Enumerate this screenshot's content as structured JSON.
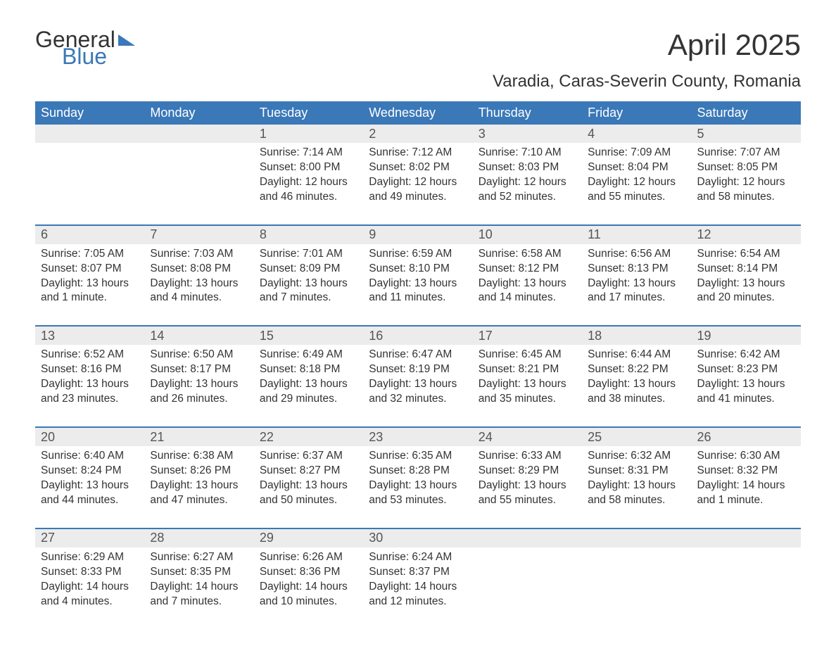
{
  "logo": {
    "text1": "General",
    "text2": "Blue"
  },
  "title": "April 2025",
  "subtitle": "Varadia, Caras-Severin County, Romania",
  "style": {
    "header_bg": "#3a78b8",
    "header_fg": "#ffffff",
    "daynum_bg": "#ececec",
    "daynum_fg": "#555555",
    "body_fg": "#333333",
    "week_border": "#3a78b8",
    "page_bg": "#ffffff",
    "title_fontsize": 42,
    "subtitle_fontsize": 24,
    "header_fontsize": 18,
    "cell_fontsize": 15.5
  },
  "columns": [
    "Sunday",
    "Monday",
    "Tuesday",
    "Wednesday",
    "Thursday",
    "Friday",
    "Saturday"
  ],
  "weeks": [
    {
      "nums": [
        "",
        "",
        "1",
        "2",
        "3",
        "4",
        "5"
      ],
      "cells": [
        "",
        "",
        "Sunrise: 7:14 AM\nSunset: 8:00 PM\nDaylight: 12 hours and 46 minutes.",
        "Sunrise: 7:12 AM\nSunset: 8:02 PM\nDaylight: 12 hours and 49 minutes.",
        "Sunrise: 7:10 AM\nSunset: 8:03 PM\nDaylight: 12 hours and 52 minutes.",
        "Sunrise: 7:09 AM\nSunset: 8:04 PM\nDaylight: 12 hours and 55 minutes.",
        "Sunrise: 7:07 AM\nSunset: 8:05 PM\nDaylight: 12 hours and 58 minutes."
      ]
    },
    {
      "nums": [
        "6",
        "7",
        "8",
        "9",
        "10",
        "11",
        "12"
      ],
      "cells": [
        "Sunrise: 7:05 AM\nSunset: 8:07 PM\nDaylight: 13 hours and 1 minute.",
        "Sunrise: 7:03 AM\nSunset: 8:08 PM\nDaylight: 13 hours and 4 minutes.",
        "Sunrise: 7:01 AM\nSunset: 8:09 PM\nDaylight: 13 hours and 7 minutes.",
        "Sunrise: 6:59 AM\nSunset: 8:10 PM\nDaylight: 13 hours and 11 minutes.",
        "Sunrise: 6:58 AM\nSunset: 8:12 PM\nDaylight: 13 hours and 14 minutes.",
        "Sunrise: 6:56 AM\nSunset: 8:13 PM\nDaylight: 13 hours and 17 minutes.",
        "Sunrise: 6:54 AM\nSunset: 8:14 PM\nDaylight: 13 hours and 20 minutes."
      ]
    },
    {
      "nums": [
        "13",
        "14",
        "15",
        "16",
        "17",
        "18",
        "19"
      ],
      "cells": [
        "Sunrise: 6:52 AM\nSunset: 8:16 PM\nDaylight: 13 hours and 23 minutes.",
        "Sunrise: 6:50 AM\nSunset: 8:17 PM\nDaylight: 13 hours and 26 minutes.",
        "Sunrise: 6:49 AM\nSunset: 8:18 PM\nDaylight: 13 hours and 29 minutes.",
        "Sunrise: 6:47 AM\nSunset: 8:19 PM\nDaylight: 13 hours and 32 minutes.",
        "Sunrise: 6:45 AM\nSunset: 8:21 PM\nDaylight: 13 hours and 35 minutes.",
        "Sunrise: 6:44 AM\nSunset: 8:22 PM\nDaylight: 13 hours and 38 minutes.",
        "Sunrise: 6:42 AM\nSunset: 8:23 PM\nDaylight: 13 hours and 41 minutes."
      ]
    },
    {
      "nums": [
        "20",
        "21",
        "22",
        "23",
        "24",
        "25",
        "26"
      ],
      "cells": [
        "Sunrise: 6:40 AM\nSunset: 8:24 PM\nDaylight: 13 hours and 44 minutes.",
        "Sunrise: 6:38 AM\nSunset: 8:26 PM\nDaylight: 13 hours and 47 minutes.",
        "Sunrise: 6:37 AM\nSunset: 8:27 PM\nDaylight: 13 hours and 50 minutes.",
        "Sunrise: 6:35 AM\nSunset: 8:28 PM\nDaylight: 13 hours and 53 minutes.",
        "Sunrise: 6:33 AM\nSunset: 8:29 PM\nDaylight: 13 hours and 55 minutes.",
        "Sunrise: 6:32 AM\nSunset: 8:31 PM\nDaylight: 13 hours and 58 minutes.",
        "Sunrise: 6:30 AM\nSunset: 8:32 PM\nDaylight: 14 hours and 1 minute."
      ]
    },
    {
      "nums": [
        "27",
        "28",
        "29",
        "30",
        "",
        "",
        ""
      ],
      "cells": [
        "Sunrise: 6:29 AM\nSunset: 8:33 PM\nDaylight: 14 hours and 4 minutes.",
        "Sunrise: 6:27 AM\nSunset: 8:35 PM\nDaylight: 14 hours and 7 minutes.",
        "Sunrise: 6:26 AM\nSunset: 8:36 PM\nDaylight: 14 hours and 10 minutes.",
        "Sunrise: 6:24 AM\nSunset: 8:37 PM\nDaylight: 14 hours and 12 minutes.",
        "",
        "",
        ""
      ]
    }
  ]
}
